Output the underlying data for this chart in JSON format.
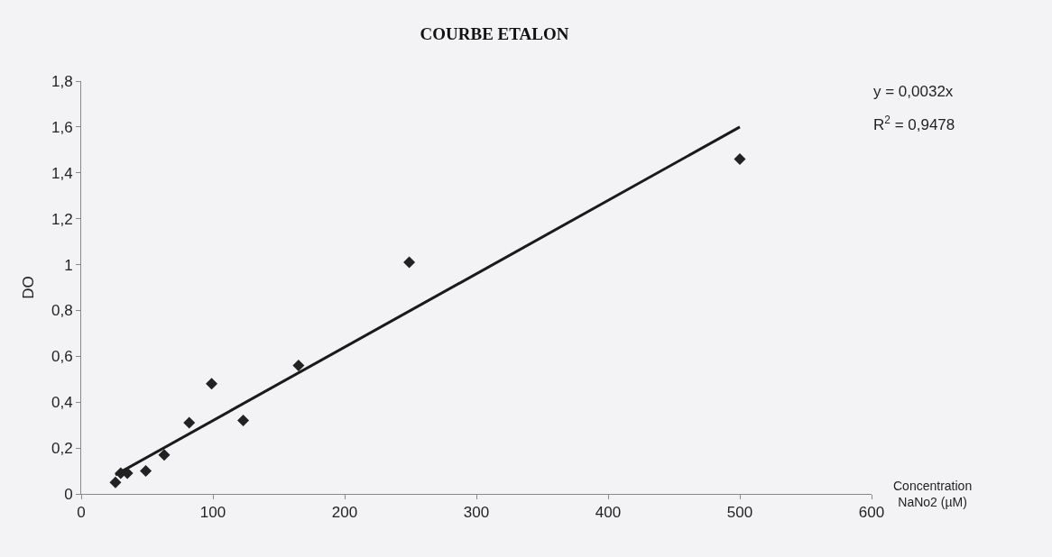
{
  "chart_data": {
    "type": "scatter",
    "title": "COURBE ETALON",
    "xlabel": "Concentration\nNaNo2 (µM)",
    "ylabel": "DO",
    "x": [
      26,
      30,
      35,
      49,
      63,
      82,
      99,
      123,
      165,
      249,
      500
    ],
    "series": [
      {
        "color": "#222222",
        "marker": "diamond",
        "values": [
          0.05,
          0.09,
          0.09,
          0.1,
          0.17,
          0.31,
          0.48,
          0.32,
          0.56,
          1.01,
          1.46
        ]
      },
      {
        "type": "line",
        "color": "#1a1a1a",
        "x": [
          26,
          500
        ],
        "values": [
          0.083,
          1.6
        ],
        "line_style": "solid"
      }
    ],
    "annotations": [
      "y = 0,0032x",
      "R$^{2}$ = 0,9478"
    ],
    "xlim": [
      0,
      600
    ],
    "xticks": [
      0,
      100,
      200,
      300,
      400,
      500,
      600
    ],
    "ylim": [
      0,
      1.8
    ],
    "yticks": [
      0,
      {
        "value": 0.2,
        "label": "0,2"
      },
      {
        "value": 0.4,
        "label": "0,4"
      },
      {
        "value": 0.6,
        "label": "0,6"
      },
      {
        "value": 0.8,
        "label": "0,8"
      },
      1,
      {
        "value": 1.2,
        "label": "1,2"
      },
      {
        "value": 1.4,
        "label": "1,4"
      },
      {
        "value": 1.6,
        "label": "1,6"
      },
      {
        "value": 1.8,
        "label": "1,8"
      }
    ],
    "grid": false
  }
}
